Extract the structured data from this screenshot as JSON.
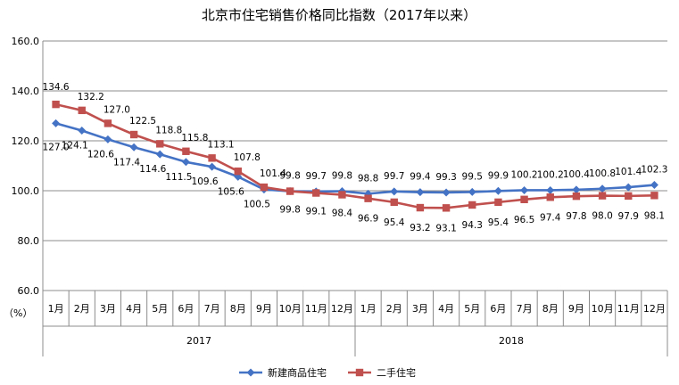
{
  "chart_data": {
    "type": "line",
    "title": "北京市住宅销售价格同比指数（2017年以来）",
    "ylabel": "（%）",
    "ylim": [
      60,
      160
    ],
    "yticks": [
      "60.0",
      "80.0",
      "100.0",
      "120.0",
      "140.0",
      "160.0"
    ],
    "categories": [
      "1月",
      "2月",
      "3月",
      "4月",
      "5月",
      "6月",
      "7月",
      "8月",
      "9月",
      "10月",
      "11月",
      "12月",
      "1月",
      "2月",
      "3月",
      "4月",
      "5月",
      "6月",
      "7月",
      "8月",
      "9月",
      "10月",
      "11月",
      "12月"
    ],
    "years": [
      {
        "label": "2017",
        "start": 0,
        "end": 11
      },
      {
        "label": "2018",
        "start": 12,
        "end": 23
      }
    ],
    "grid": "horizontal",
    "legend_position": "bottom",
    "series": [
      {
        "name": "新建商品住宅",
        "color": "#4472C4",
        "marker": "diamond",
        "values": [
          127.0,
          124.1,
          120.6,
          117.4,
          114.6,
          111.5,
          109.6,
          105.6,
          100.5,
          99.8,
          99.7,
          99.8,
          98.8,
          99.7,
          99.4,
          99.3,
          99.5,
          99.9,
          100.2,
          100.2,
          100.4,
          100.8,
          101.4,
          102.3
        ],
        "labels": [
          "127.0",
          "124.1",
          "120.6",
          "117.4",
          "114.6",
          "111.5",
          "109.6",
          "105.6",
          "100.5",
          "99.8",
          "99.7",
          "99.8",
          "98.8",
          "99.7",
          "99.4",
          "99.3",
          "99.5",
          "99.9",
          "100.2",
          "100.2",
          "100.4",
          "100.8",
          "101.4",
          "102.3"
        ]
      },
      {
        "name": "二手住宅",
        "color": "#C0504D",
        "marker": "square",
        "values": [
          134.6,
          132.2,
          127.0,
          122.5,
          118.8,
          115.8,
          113.1,
          107.8,
          101.4,
          99.8,
          99.1,
          98.4,
          96.9,
          95.4,
          93.2,
          93.1,
          94.3,
          95.4,
          96.5,
          97.4,
          97.8,
          98.0,
          97.9,
          98.1
        ],
        "labels": [
          "134.6",
          "132.2",
          "127.0",
          "122.5",
          "118.8",
          "115.8",
          "113.1",
          "107.8",
          "101.4",
          "99.8",
          "99.1",
          "98.4",
          "96.9",
          "95.4",
          "93.2",
          "93.1",
          "94.3",
          "95.4",
          "96.5",
          "97.4",
          "97.8",
          "98.0",
          "97.9",
          "98.1"
        ]
      }
    ]
  }
}
